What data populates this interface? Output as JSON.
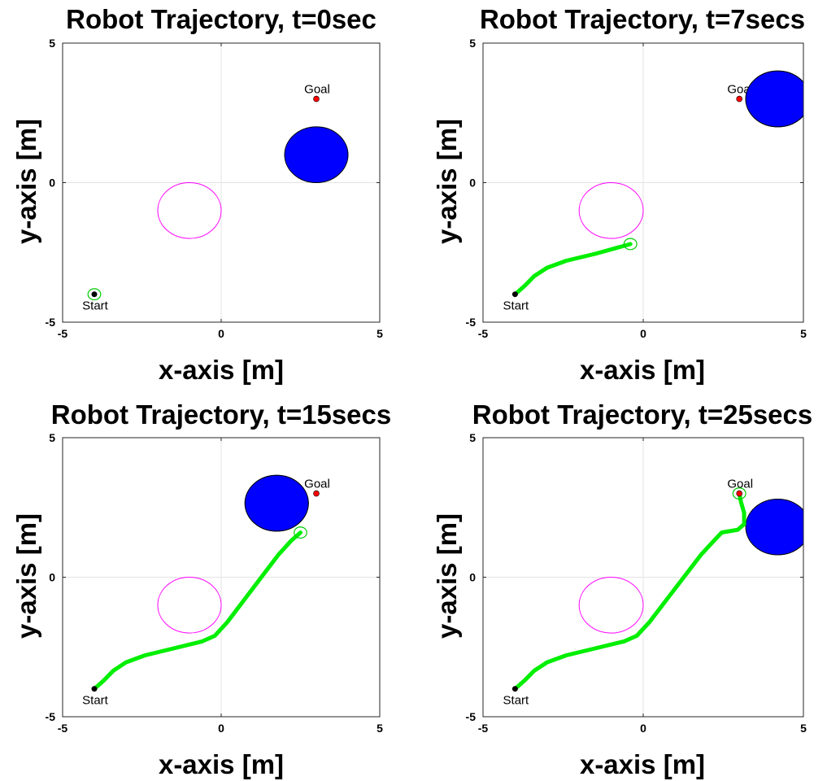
{
  "chart_data": [
    {
      "type": "scatter",
      "title": "Robot Trajectory, t=0sec",
      "xlabel": "x-axis [m]",
      "ylabel": "y-axis [m]",
      "xlim": [
        -5,
        5
      ],
      "ylim": [
        -5,
        5
      ],
      "xticks": [
        "-5",
        "0",
        "5"
      ],
      "yticks": [
        "-5",
        "0",
        "5"
      ],
      "grid": true,
      "start": {
        "label": "Start",
        "x": -4,
        "y": -4,
        "color": "#000000"
      },
      "goal": {
        "label": "Goal",
        "x": 3,
        "y": 3,
        "color": "#ff0000"
      },
      "static_obstacle": {
        "cx": -1,
        "cy": -1,
        "r": 1,
        "color": "#ff00ff",
        "filled": false
      },
      "moving_obstacle": {
        "cx": 3,
        "cy": 1,
        "r": 1,
        "color": "#0000ff"
      },
      "trajectory": {
        "color": "#00ee00",
        "points": [
          [
            -4,
            -4
          ]
        ]
      },
      "robot": {
        "x": -4,
        "y": -4,
        "r": 0.2,
        "color": "#00cc00"
      }
    },
    {
      "type": "scatter",
      "title": "Robot Trajectory, t=7secs",
      "xlabel": "x-axis [m]",
      "ylabel": "y-axis [m]",
      "xlim": [
        -5,
        5
      ],
      "ylim": [
        -5,
        5
      ],
      "xticks": [
        "-5",
        "0",
        "5"
      ],
      "yticks": [
        "-5",
        "0",
        "5"
      ],
      "grid": true,
      "start": {
        "label": "Start",
        "x": -4,
        "y": -4,
        "color": "#000000"
      },
      "goal": {
        "label": "Goal",
        "x": 3,
        "y": 3,
        "color": "#ff0000"
      },
      "static_obstacle": {
        "cx": -1,
        "cy": -1,
        "r": 1,
        "color": "#ff00ff",
        "filled": false
      },
      "moving_obstacle": {
        "cx": 4.2,
        "cy": 3,
        "r": 1,
        "color": "#0000ff"
      },
      "trajectory": {
        "color": "#00ee00",
        "points": [
          [
            -4,
            -4
          ],
          [
            -3.7,
            -3.7
          ],
          [
            -3.4,
            -3.35
          ],
          [
            -3.0,
            -3.05
          ],
          [
            -2.4,
            -2.8
          ],
          [
            -1.5,
            -2.55
          ],
          [
            -0.4,
            -2.2
          ]
        ]
      },
      "robot": {
        "x": -0.4,
        "y": -2.2,
        "r": 0.2,
        "color": "#00cc00"
      }
    },
    {
      "type": "scatter",
      "title": "Robot Trajectory, t=15secs",
      "xlabel": "x-axis [m]",
      "ylabel": "y-axis [m]",
      "xlim": [
        -5,
        5
      ],
      "ylim": [
        -5,
        5
      ],
      "xticks": [
        "-5",
        "0",
        "5"
      ],
      "yticks": [
        "-5",
        "0",
        "5"
      ],
      "grid": true,
      "start": {
        "label": "Start",
        "x": -4,
        "y": -4,
        "color": "#000000"
      },
      "goal": {
        "label": "Goal",
        "x": 3,
        "y": 3,
        "color": "#ff0000"
      },
      "static_obstacle": {
        "cx": -1,
        "cy": -1,
        "r": 1,
        "color": "#ff00ff",
        "filled": false
      },
      "moving_obstacle": {
        "cx": 1.75,
        "cy": 2.65,
        "r": 1,
        "color": "#0000ff"
      },
      "trajectory": {
        "color": "#00ee00",
        "points": [
          [
            -4,
            -4
          ],
          [
            -3.7,
            -3.7
          ],
          [
            -3.4,
            -3.35
          ],
          [
            -3.0,
            -3.05
          ],
          [
            -2.4,
            -2.8
          ],
          [
            -1.5,
            -2.55
          ],
          [
            -0.6,
            -2.3
          ],
          [
            -0.2,
            -2.1
          ],
          [
            0.2,
            -1.6
          ],
          [
            0.8,
            -0.7
          ],
          [
            1.4,
            0.2
          ],
          [
            1.8,
            0.8
          ],
          [
            2.2,
            1.3
          ],
          [
            2.5,
            1.6
          ]
        ]
      },
      "robot": {
        "x": 2.5,
        "y": 1.6,
        "r": 0.2,
        "color": "#00cc00"
      }
    },
    {
      "type": "scatter",
      "title": "Robot Trajectory, t=25secs",
      "xlabel": "x-axis [m]",
      "ylabel": "y-axis [m]",
      "xlim": [
        -5,
        5
      ],
      "ylim": [
        -5,
        5
      ],
      "xticks": [
        "-5",
        "0",
        "5"
      ],
      "yticks": [
        "-5",
        "0",
        "5"
      ],
      "grid": true,
      "start": {
        "label": "Start",
        "x": -4,
        "y": -4,
        "color": "#000000"
      },
      "goal": {
        "label": "Goal",
        "x": 3,
        "y": 3,
        "color": "#ff0000"
      },
      "static_obstacle": {
        "cx": -1,
        "cy": -1,
        "r": 1,
        "color": "#ff00ff",
        "filled": false
      },
      "moving_obstacle": {
        "cx": 4.2,
        "cy": 1.8,
        "r": 1,
        "color": "#0000ff"
      },
      "trajectory": {
        "color": "#00ee00",
        "points": [
          [
            -4,
            -4
          ],
          [
            -3.7,
            -3.7
          ],
          [
            -3.4,
            -3.35
          ],
          [
            -3.0,
            -3.05
          ],
          [
            -2.4,
            -2.8
          ],
          [
            -1.5,
            -2.55
          ],
          [
            -0.6,
            -2.3
          ],
          [
            -0.2,
            -2.1
          ],
          [
            0.2,
            -1.6
          ],
          [
            0.8,
            -0.7
          ],
          [
            1.4,
            0.2
          ],
          [
            1.8,
            0.8
          ],
          [
            2.2,
            1.3
          ],
          [
            2.45,
            1.6
          ],
          [
            2.7,
            1.65
          ],
          [
            2.95,
            1.7
          ],
          [
            3.15,
            1.9
          ],
          [
            3.15,
            2.3
          ],
          [
            3.05,
            2.7
          ],
          [
            3.0,
            3.0
          ]
        ]
      },
      "robot": {
        "x": 3.0,
        "y": 3.0,
        "r": 0.2,
        "color": "#00cc00"
      }
    }
  ]
}
